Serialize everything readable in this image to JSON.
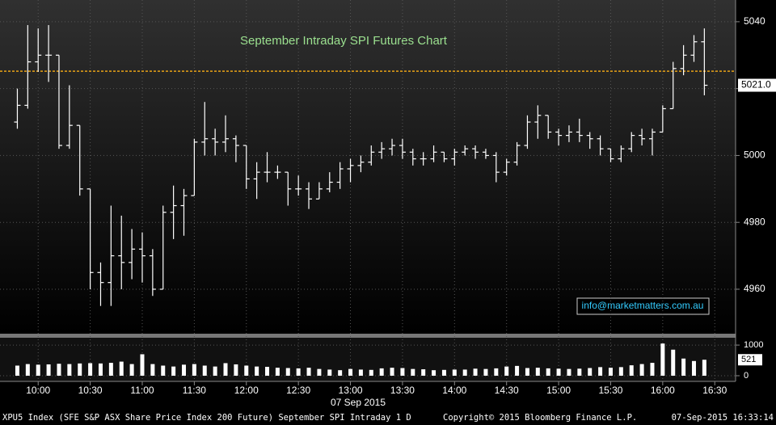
{
  "chart_data": [
    {
      "type": "ohlc",
      "title": "September Intraday SPI Futures Chart",
      "x": [
        "09:48",
        "09:54",
        "10:00",
        "10:06",
        "10:12",
        "10:18",
        "10:24",
        "10:30",
        "10:36",
        "10:42",
        "10:48",
        "10:54",
        "11:00",
        "11:06",
        "11:12",
        "11:18",
        "11:24",
        "11:30",
        "11:36",
        "11:42",
        "11:48",
        "11:54",
        "12:00",
        "12:06",
        "12:12",
        "12:18",
        "12:24",
        "12:30",
        "12:36",
        "12:42",
        "12:48",
        "12:54",
        "13:00",
        "13:06",
        "13:12",
        "13:18",
        "13:24",
        "13:30",
        "13:36",
        "13:42",
        "13:48",
        "13:54",
        "14:00",
        "14:06",
        "14:12",
        "14:18",
        "14:24",
        "14:30",
        "14:36",
        "14:42",
        "14:48",
        "14:54",
        "15:00",
        "15:06",
        "15:12",
        "15:18",
        "15:24",
        "15:30",
        "15:36",
        "15:42",
        "15:48",
        "15:54",
        "16:00",
        "16:06",
        "16:12",
        "16:18",
        "16:24"
      ],
      "open": [
        5010,
        5015,
        5028,
        5030,
        5030,
        5003,
        5009,
        4990,
        4965,
        4962,
        4970,
        4968,
        4972,
        4970,
        4960,
        4983,
        4985,
        4988,
        5004,
        5005,
        5004,
        5005,
        5003,
        4993,
        4995,
        4995,
        4995,
        4990,
        4990,
        4987,
        4990,
        4992,
        4996,
        4997,
        4998,
        5001,
        5002,
        5003,
        5001,
        4999,
        4999,
        5001,
        4999,
        5001,
        5002,
        5001,
        5000,
        4995,
        4998,
        5003,
        5010,
        5012,
        5007,
        5006,
        5007,
        5006,
        5005,
        5002,
        4999,
        5002,
        5006,
        5005,
        5007,
        5014,
        5026,
        5030,
        5034
      ],
      "high": [
        5020,
        5039,
        5038,
        5039,
        5030,
        5021,
        5009,
        4990,
        4968,
        4985,
        4982,
        4978,
        4977,
        4972,
        4985,
        4991,
        4990,
        5005,
        5016,
        5008,
        5012,
        5006,
        5003,
        4998,
        5001,
        4997,
        4995,
        4994,
        4992,
        4992,
        4995,
        4998,
        4999,
        5000,
        5003,
        5004,
        5005,
        5005,
        5002,
        5001,
        5003,
        5001,
        5002,
        5003,
        5003,
        5002,
        5001,
        4999,
        5004,
        5012,
        5015,
        5012,
        5008,
        5009,
        5011,
        5007,
        5006,
        5002,
        5003,
        5007,
        5008,
        5008,
        5015,
        5028,
        5033,
        5036,
        5038
      ],
      "low": [
        5008,
        5014,
        5025,
        5022,
        5002,
        5002,
        4988,
        4960,
        4955,
        4955,
        4960,
        4963,
        4962,
        4958,
        4960,
        4975,
        4976,
        4988,
        5000,
        5000,
        5001,
        4998,
        4990,
        4987,
        4992,
        4993,
        4985,
        4988,
        4984,
        4987,
        4989,
        4990,
        4992,
        4995,
        4997,
        4999,
        5000,
        4999,
        4997,
        4997,
        4998,
        4998,
        4997,
        5000,
        4999,
        4999,
        4992,
        4994,
        4997,
        5002,
        5005,
        5005,
        5003,
        5004,
        5004,
        5002,
        5000,
        4998,
        4998,
        5001,
        5003,
        5000,
        5007,
        5014,
        5024,
        5028,
        5018
      ],
      "close": [
        5015,
        5028,
        5030,
        5030,
        5003,
        5009,
        4990,
        4965,
        4962,
        4970,
        4968,
        4972,
        4970,
        4960,
        4983,
        4985,
        4988,
        5004,
        5005,
        5004,
        5005,
        5003,
        4993,
        4995,
        4995,
        4995,
        4990,
        4990,
        4987,
        4990,
        4992,
        4996,
        4997,
        4998,
        5001,
        5002,
        5003,
        5001,
        4999,
        4999,
        5001,
        4999,
        5001,
        5002,
        5001,
        5000,
        4995,
        4998,
        5003,
        5010,
        5012,
        5007,
        5006,
        5007,
        5006,
        5005,
        5002,
        4999,
        5002,
        5006,
        5005,
        5007,
        5014,
        5026,
        5030,
        5034,
        5021
      ],
      "color": "#ffffff",
      "xlim": [
        "09:38",
        "16:42"
      ],
      "ylim": [
        4946.7,
        5046.5
      ],
      "yticks": [
        4960,
        4980,
        5000,
        5020,
        5040
      ],
      "last_price": {
        "value": 5021.0,
        "label": "5021.0"
      },
      "reference_line": {
        "value": 5025.2,
        "color": "#e8a317"
      },
      "annotation": "info@marketmatters.com.au",
      "grid": true
    },
    {
      "type": "bar",
      "name": "volume",
      "x": [
        "09:48",
        "09:54",
        "10:00",
        "10:06",
        "10:12",
        "10:18",
        "10:24",
        "10:30",
        "10:36",
        "10:42",
        "10:48",
        "10:54",
        "11:00",
        "11:06",
        "11:12",
        "11:18",
        "11:24",
        "11:30",
        "11:36",
        "11:42",
        "11:48",
        "11:54",
        "12:00",
        "12:06",
        "12:12",
        "12:18",
        "12:24",
        "12:30",
        "12:36",
        "12:42",
        "12:48",
        "12:54",
        "13:00",
        "13:06",
        "13:12",
        "13:18",
        "13:24",
        "13:30",
        "13:36",
        "13:42",
        "13:48",
        "13:54",
        "14:00",
        "14:06",
        "14:12",
        "14:18",
        "14:24",
        "14:30",
        "14:36",
        "14:42",
        "14:48",
        "14:54",
        "15:00",
        "15:06",
        "15:12",
        "15:18",
        "15:24",
        "15:30",
        "15:36",
        "15:42",
        "15:48",
        "15:54",
        "16:00",
        "16:06",
        "16:12",
        "16:18",
        "16:24"
      ],
      "values": [
        330,
        380,
        360,
        370,
        390,
        380,
        400,
        410,
        400,
        420,
        460,
        380,
        700,
        380,
        330,
        300,
        360,
        380,
        330,
        300,
        410,
        370,
        330,
        300,
        290,
        260,
        250,
        240,
        260,
        220,
        200,
        180,
        220,
        200,
        190,
        240,
        260,
        250,
        220,
        210,
        180,
        190,
        200,
        200,
        230,
        220,
        240,
        300,
        320,
        250,
        260,
        240,
        230,
        220,
        230,
        250,
        280,
        260,
        280,
        340,
        380,
        420,
        1050,
        850,
        560,
        480,
        521
      ],
      "color": "#ffffff",
      "xlim": [
        "09:38",
        "16:42"
      ],
      "xticks": [
        "10:00",
        "10:30",
        "11:00",
        "11:30",
        "12:00",
        "12:30",
        "13:00",
        "13:30",
        "14:00",
        "14:30",
        "15:00",
        "15:30",
        "16:00",
        "16:30"
      ],
      "x_label": "07 Sep 2015",
      "ylim": [
        0,
        1200
      ],
      "yticks": [
        0,
        1000
      ],
      "grid": true
    }
  ],
  "footer": {
    "security": "XPU5 Index (SFE S&P ASX Share Price Index 200 Future) September SPI Intraday 1 D",
    "copyright": "Copyright© 2015 Bloomberg Finance L.P.",
    "timestamp": "07-Sep-2015 16:33:14"
  }
}
